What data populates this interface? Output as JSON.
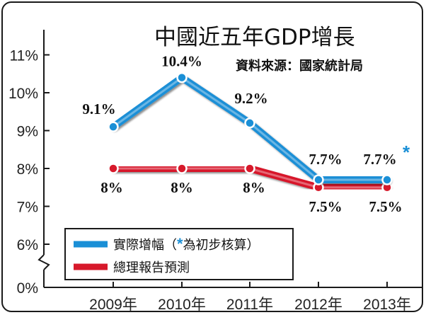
{
  "chart_data": {
    "type": "line",
    "title": "中國近五年GDP增長",
    "source": "資料來源：國家統計局",
    "categories": [
      "2009年",
      "2010年",
      "2011年",
      "2012年",
      "2013年"
    ],
    "y_ticks": [
      "0%",
      "6%",
      "7%",
      "8%",
      "9%",
      "10%",
      "11%"
    ],
    "y_axis_break": true,
    "series": [
      {
        "name": "實際增幅（",
        "name_star": "*",
        "name_suffix": "為初步核算）",
        "color": "#1a8fd6",
        "values": [
          9.1,
          10.4,
          9.2,
          7.7,
          7.7
        ],
        "labels": [
          "9.1%",
          "10.4%",
          "9.2%",
          "7.7%",
          "7.7%"
        ],
        "last_star": "*"
      },
      {
        "name": "總理報告預測",
        "color": "#d7192b",
        "values": [
          8,
          8,
          8,
          7.5,
          7.5
        ],
        "labels": [
          "8%",
          "8%",
          "8%",
          "7.5%",
          "7.5%"
        ]
      }
    ]
  }
}
